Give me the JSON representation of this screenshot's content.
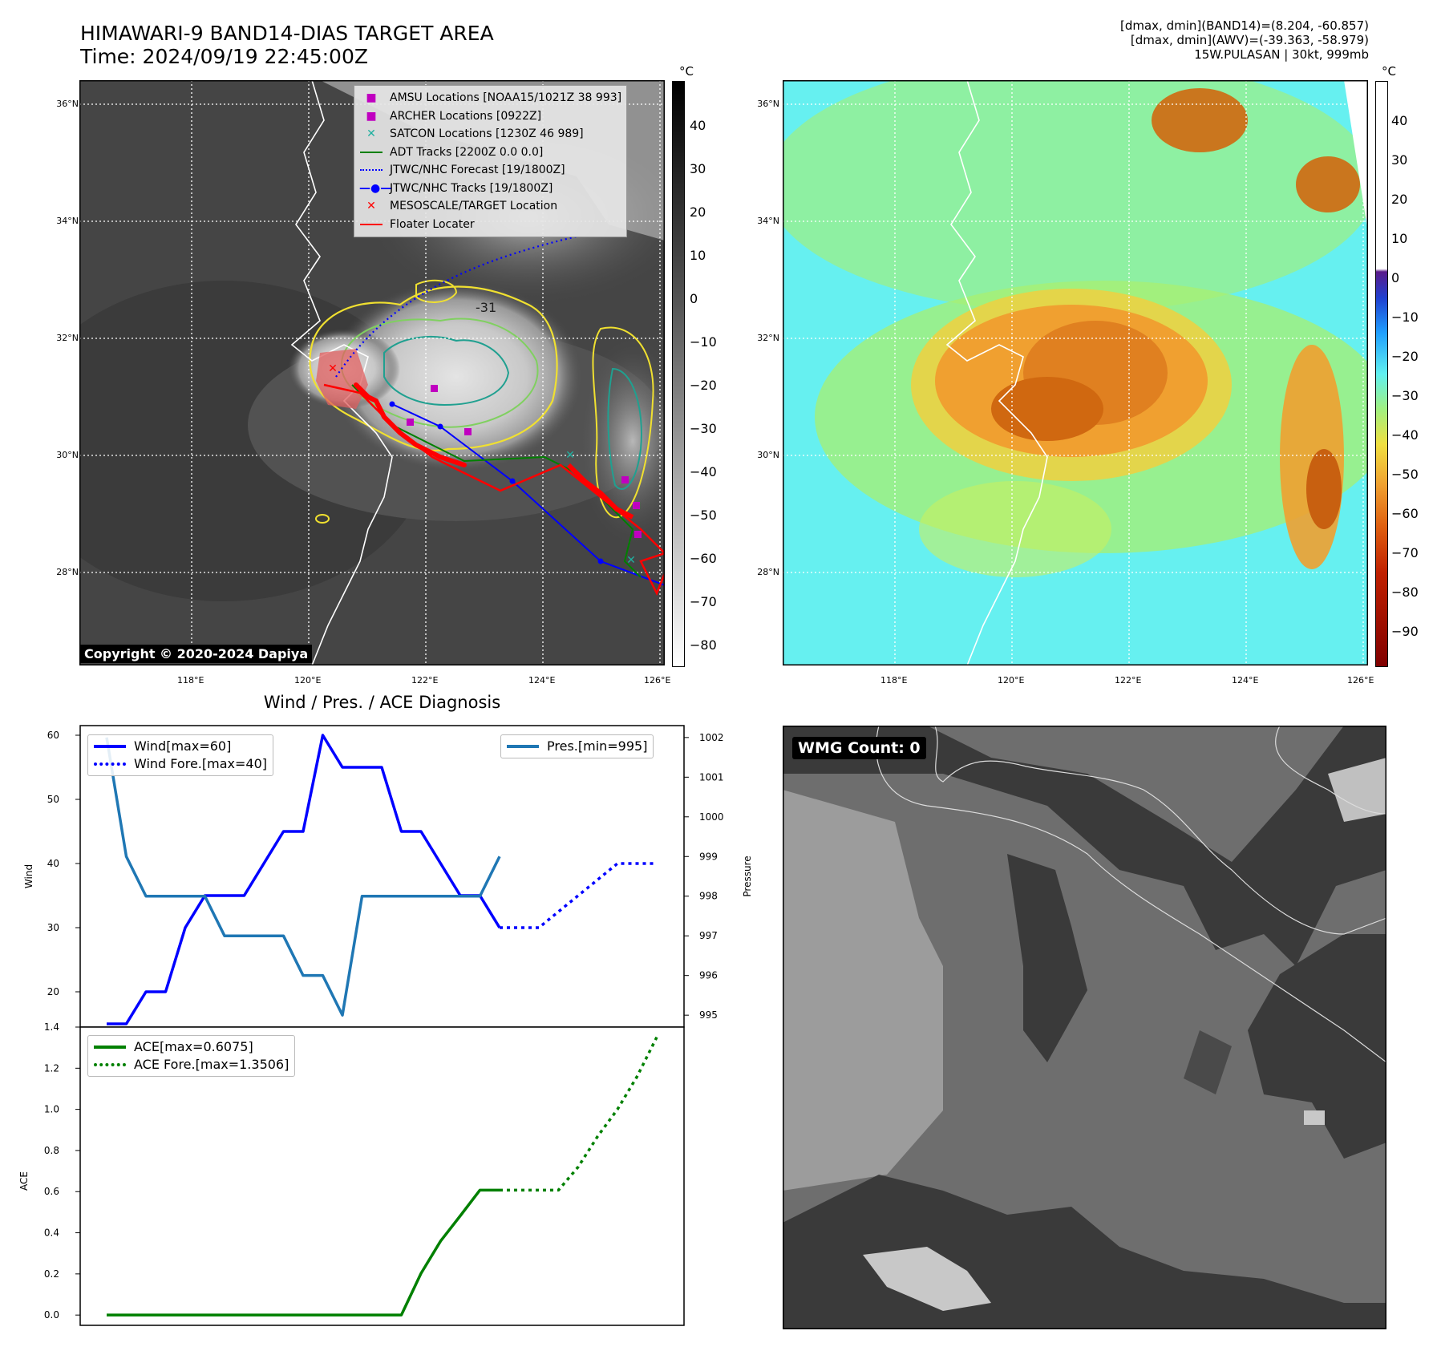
{
  "header": {
    "title_line1": "HIMAWARI-9 BAND14-DIAS TARGET AREA",
    "title_line2": "Time: 2024/09/19 22:45:00Z",
    "info_line1": "[dmax, dmin](BAND14)=(8.204, -60.857)",
    "info_line2": "[dmax, dmin](AWV)=(-39.363, -58.979)",
    "info_line3": "15W.PULASAN | 30kt, 999mb"
  },
  "map_ir": {
    "lat_ticks": [
      "36°N",
      "34°N",
      "32°N",
      "30°N",
      "28°N"
    ],
    "lon_ticks": [
      "118°E",
      "120°E",
      "122°E",
      "124°E",
      "126°E"
    ],
    "contour_label": "-31",
    "copyright": "Copyright © 2020-2024 Dapiya",
    "colorbar_unit": "°C",
    "colorbar_ticks": [
      "40",
      "30",
      "20",
      "10",
      "0",
      "−10",
      "−20",
      "−30",
      "−40",
      "−50",
      "−60",
      "−70",
      "−80"
    ],
    "legend": [
      {
        "label": "AMSU Locations [NOAA15/1021Z 38 993]",
        "marker": "square",
        "color": "#c000c0"
      },
      {
        "label": "ARCHER Locations [0922Z]",
        "marker": "square",
        "color": "#c000c0"
      },
      {
        "label": "SATCON Locations [1230Z 46 989]",
        "marker": "x",
        "color": "#20b0a0"
      },
      {
        "label": "ADT Tracks [2200Z 0.0 0.0]",
        "marker": "line",
        "color": "#008000"
      },
      {
        "label": "JTWC/NHC Forecast [19/1800Z]",
        "marker": "dotted",
        "color": "#0000ff"
      },
      {
        "label": "JTWC/NHC Tracks [19/1800Z]",
        "marker": "line-dot",
        "color": "#0000ff"
      },
      {
        "label": "MESOSCALE/TARGET Location",
        "marker": "x",
        "color": "#ff0000"
      },
      {
        "label": "Floater Locater",
        "marker": "line",
        "color": "#ff0000"
      }
    ]
  },
  "map_awv": {
    "lat_ticks": [
      "36°N",
      "34°N",
      "32°N",
      "30°N",
      "28°N"
    ],
    "lon_ticks": [
      "118°E",
      "120°E",
      "122°E",
      "124°E",
      "126°E"
    ],
    "colorbar_unit": "°C",
    "colorbar_ticks": [
      "40",
      "30",
      "20",
      "10",
      "0",
      "−10",
      "−20",
      "−30",
      "−40",
      "−50",
      "−60",
      "−70",
      "−80",
      "−90"
    ]
  },
  "wmg_panel": {
    "label": "WMG Count: 0"
  },
  "chart_data": [
    {
      "type": "line",
      "title": "Wind / Pres. / ACE Diagnosis",
      "ylabel": "Wind",
      "ylabel_right": "Pressure",
      "ylim": [
        14.5,
        61.5
      ],
      "ylim_right": [
        994.7,
        1002.3
      ],
      "yticks": [
        20,
        30,
        40,
        50,
        60
      ],
      "yticks_right": [
        995,
        996,
        997,
        998,
        999,
        1000,
        1001,
        1002
      ],
      "x": [
        0,
        1,
        2,
        3,
        4,
        5,
        6,
        7,
        8,
        9,
        10,
        11,
        12,
        13,
        14,
        15,
        16,
        17,
        18,
        19,
        20,
        21,
        22,
        23,
        24,
        25,
        26,
        27,
        28,
        29
      ],
      "series": [
        {
          "name": "Wind[max=60]",
          "axis": "left",
          "style": "solid",
          "color": "#0000ff",
          "x": [
            0,
            1,
            2,
            3,
            4,
            5,
            6,
            7,
            8,
            9,
            10,
            11,
            12,
            13,
            14,
            15,
            16,
            17,
            18,
            19,
            20
          ],
          "values": [
            15,
            15,
            20,
            20,
            30,
            35,
            35,
            35,
            40,
            45,
            45,
            60,
            55,
            55,
            55,
            45,
            45,
            40,
            35,
            35,
            30
          ]
        },
        {
          "name": "Wind Fore.[max=40]",
          "axis": "left",
          "style": "dotted",
          "color": "#0000ff",
          "x": [
            20,
            21,
            22,
            23,
            24,
            25,
            26,
            27,
            28
          ],
          "values": [
            30,
            30,
            30,
            32.5,
            35,
            37.5,
            40,
            40,
            40
          ]
        },
        {
          "name": "Pres.[min=995]",
          "axis": "right",
          "style": "solid",
          "color": "#1f77b4",
          "x": [
            0,
            1,
            2,
            3,
            4,
            5,
            6,
            7,
            8,
            9,
            10,
            11,
            12,
            13,
            14,
            15,
            16,
            17,
            18,
            19,
            20
          ],
          "values": [
            1002,
            999,
            998,
            998,
            998,
            998,
            997,
            997,
            997,
            997,
            996,
            996,
            995,
            998,
            998,
            998,
            998,
            998,
            998,
            998,
            999
          ]
        }
      ]
    },
    {
      "type": "line",
      "ylabel": "ACE",
      "ylim": [
        -0.05,
        1.4
      ],
      "yticks": [
        0.0,
        0.2,
        0.4,
        0.6,
        0.8,
        1.0,
        1.2,
        1.4
      ],
      "series": [
        {
          "name": "ACE[max=0.6075]",
          "style": "solid",
          "color": "#008000",
          "x": [
            0,
            1,
            2,
            3,
            4,
            5,
            6,
            7,
            8,
            9,
            10,
            11,
            12,
            13,
            14,
            15,
            16,
            17,
            18,
            19,
            20
          ],
          "values": [
            0,
            0,
            0,
            0,
            0,
            0,
            0,
            0,
            0,
            0,
            0,
            0,
            0,
            0,
            0,
            0,
            0.2025,
            0.36,
            0.4825,
            0.6075,
            0.6075
          ]
        },
        {
          "name": "ACE Fore.[max=1.3506]",
          "style": "dotted",
          "color": "#008000",
          "x": [
            20,
            21,
            22,
            23,
            24,
            25,
            26,
            27,
            28
          ],
          "values": [
            0.6075,
            0.6075,
            0.6075,
            0.6075,
            0.72,
            0.87,
            1.0,
            1.16,
            1.3506
          ]
        }
      ]
    }
  ]
}
